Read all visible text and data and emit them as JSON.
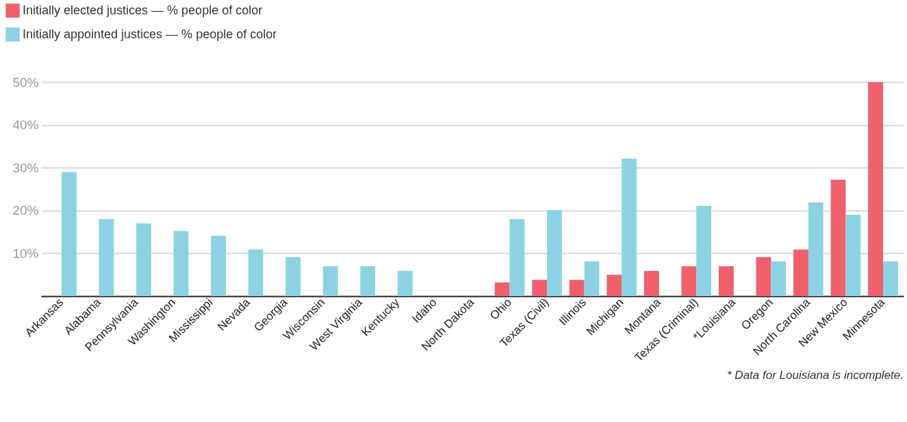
{
  "chart_data": {
    "type": "bar",
    "categories": [
      "Arkansas",
      "Alabama",
      "Pennsylvania",
      "Washington",
      "Mississippi",
      "Nevada",
      "Georgia",
      "Wisconsin",
      "West Virginia",
      "Kentucky",
      "Idaho",
      "North Dakota",
      "Ohio",
      "Texas (Civil)",
      "Illinois",
      "Michigan",
      "Montana",
      "Texas (Criminal)",
      "*Louisiana",
      "Oregon",
      "North Carolina",
      "New Mexico",
      "Minnesota"
    ],
    "series": [
      {
        "name": "Initially elected justices — % people of color",
        "color": "#f0606a",
        "values": [
          null,
          null,
          null,
          null,
          null,
          null,
          null,
          null,
          null,
          null,
          null,
          null,
          3.2,
          3.8,
          3.8,
          5,
          5.9,
          7,
          7,
          9.1,
          10.9,
          27.2,
          50
        ]
      },
      {
        "name": "Initially appointed justices — % people of color",
        "color": "#8dd1e5",
        "values": [
          29,
          18,
          17,
          15.2,
          14.1,
          10.9,
          9.1,
          7,
          7,
          5.9,
          null,
          null,
          18,
          20.1,
          8.1,
          32.1,
          null,
          21.1,
          null,
          8.1,
          21.9,
          19,
          8.1
        ]
      }
    ],
    "ylim": [
      0,
      50
    ],
    "yticks": [
      {
        "value": 10,
        "label": "10%"
      },
      {
        "value": 20,
        "label": "20%"
      },
      {
        "value": 30,
        "label": "30%"
      },
      {
        "value": 40,
        "label": "40%"
      },
      {
        "value": 50,
        "label": "50%"
      }
    ],
    "grid": "y",
    "legend": "top left",
    "annotations": [
      "* Data for Louisiana is incomplete."
    ]
  }
}
